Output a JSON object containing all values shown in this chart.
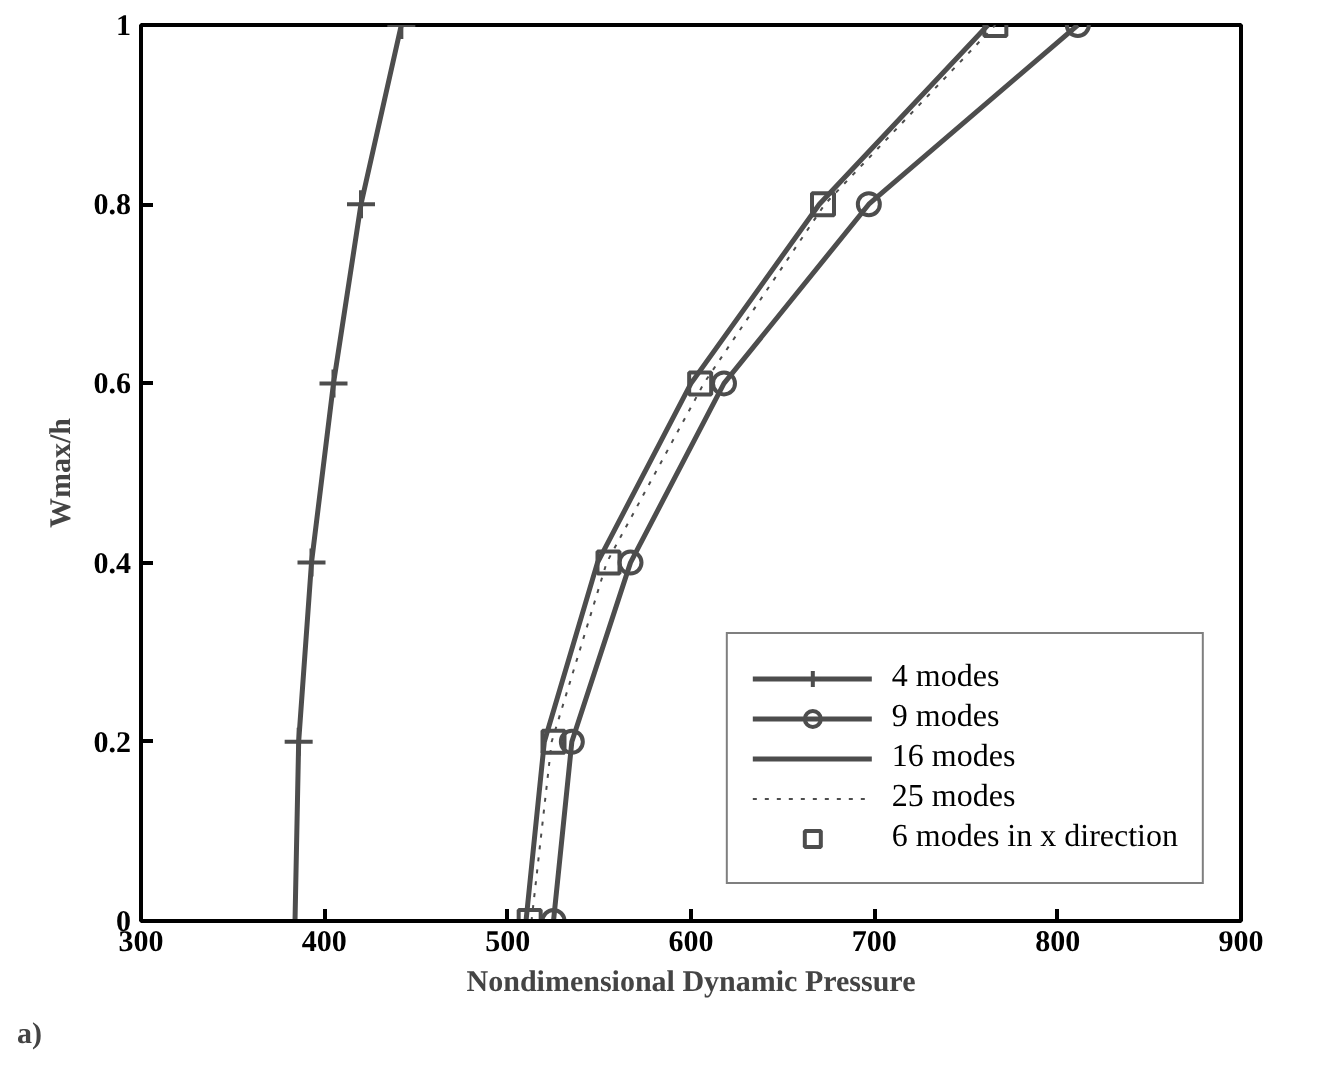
{
  "chart_data": {
    "type": "line",
    "xlabel": "Nondimensional Dynamic Pressure",
    "ylabel": "Wmax/h",
    "xlim": [
      300,
      900
    ],
    "xticks": [
      300,
      400,
      500,
      600,
      700,
      800,
      900
    ],
    "ylim": [
      0,
      1
    ],
    "yticks": [
      0,
      0.2,
      0.4,
      0.6,
      0.8,
      1
    ],
    "grid": false,
    "legend": "bottom right",
    "annotations": [
      "a)"
    ],
    "series": [
      {
        "name": "4 modes",
        "color": "#4d4d4d",
        "marker": "cross",
        "line_style": "solid",
        "x": [
          384,
          386,
          393,
          405,
          420,
          442
        ],
        "values": [
          0,
          0.2,
          0.4,
          0.6,
          0.8,
          1
        ]
      },
      {
        "name": "9 modes",
        "color": "#4d4d4d",
        "marker": "circle",
        "line_style": "solid",
        "x": [
          525,
          535,
          567,
          618,
          697,
          811
        ],
        "values": [
          0,
          0.2,
          0.4,
          0.6,
          0.8,
          1
        ]
      },
      {
        "name": "16 modes",
        "color": "#4d4d4d",
        "marker": "none",
        "line_style": "solid",
        "x": [
          510,
          520,
          549,
          600,
          670,
          762
        ],
        "values": [
          0,
          0.2,
          0.4,
          0.6,
          0.8,
          1
        ]
      },
      {
        "name": "25 modes",
        "color": "#4d4d4d",
        "marker": "none",
        "line_style": "dotted",
        "x": [
          513,
          524,
          554,
          607,
          673,
          766
        ],
        "values": [
          0,
          0.2,
          0.4,
          0.6,
          0.8,
          1
        ]
      },
      {
        "name": "6 modes in x direction",
        "type": "scatter",
        "color": "#4d4d4d",
        "marker": "square",
        "x": [
          512,
          525,
          555,
          605,
          672,
          766
        ],
        "values": [
          0,
          0.2,
          0.4,
          0.6,
          0.8,
          1
        ]
      }
    ]
  }
}
